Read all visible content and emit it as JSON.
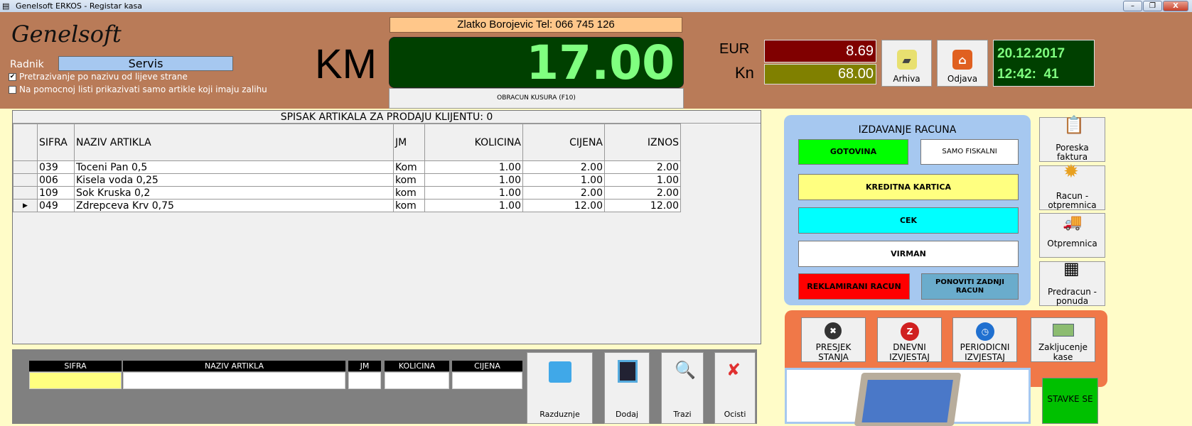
{
  "window": {
    "title": "Genelsoft ERKOS - Registar kasa",
    "minimize": "–",
    "restore": "❐",
    "close": "X"
  },
  "header": {
    "logo": "Genelsoft",
    "radnik_label": "Radnik",
    "radnik_value": "Servis",
    "options": [
      {
        "label": "Pretrazivanje po nazivu od lijeve strane",
        "checked": true
      },
      {
        "label": "Na pomocnoj listi prikazivati samo artikle koji imaju zalihu",
        "checked": false
      }
    ],
    "currency": "KM",
    "customer": "Zlatko Borojevic Tel: 066 745 126",
    "total": "17.00",
    "change_button": "OBRACUN KUSURA (F10)",
    "eur_label": "EUR",
    "eur_value": "8.69",
    "kn_label": "Kn",
    "kn_value": "68.00",
    "archive_button": "Arhiva",
    "logout_button": "Odjava",
    "date": "20.12.2017",
    "time": "12:42:  41"
  },
  "colors": {
    "header": "#b97b58",
    "display_bg": "#004000",
    "display_text": "#80ff80",
    "eur_bg": "#800000",
    "kn_bg": "#808000"
  },
  "items_table": {
    "title": "SPISAK ARTIKALA ZA PRODAJU KLIJENTU: 0",
    "columns": [
      "SIFRA",
      "NAZIV ARTIKLA",
      "JM",
      "KOLICINA",
      "CIJENA",
      "IZNOS"
    ],
    "rows": [
      [
        "039",
        "Toceni Pan 0,5",
        "Kom",
        "1.00",
        "2.00",
        "2.00"
      ],
      [
        "006",
        "Kisela voda 0,25",
        "kom",
        "1.00",
        "1.00",
        "1.00"
      ],
      [
        "109",
        "Sok Kruska 0,2",
        "kom",
        "1.00",
        "2.00",
        "2.00"
      ],
      [
        "049",
        "Zdrepceva Krv 0,75",
        "kom",
        "1.00",
        "12.00",
        "12.00"
      ]
    ],
    "current_row_marker": "▶"
  },
  "invoice_panel": {
    "title": "IZDAVANJE RACUNA",
    "gotovina": "GOTOVINA",
    "samo_fiskalni": "SAMO FISKALNI",
    "kreditna": "KREDITNA KARTICA",
    "cek": "CEK",
    "virman": "VIRMAN",
    "reklamirani": "REKLAMIRANI RACUN",
    "ponoviti": "PONOVITI ZADNJI RACUN"
  },
  "side_buttons": [
    "Poreska faktura",
    "Racun - otpremnica",
    "Otpremnica",
    "Predracun - ponuda"
  ],
  "report_buttons": [
    "PRESJEK STANJA",
    "DNEVNI IZVJESTAJ",
    "PERIODICNI IZVJESTAJ",
    "Zakljucenje kase"
  ],
  "entry": {
    "columns": [
      "SIFRA",
      "NAZIV ARTIKLA",
      "JM",
      "KOLICINA",
      "CIJENA"
    ],
    "buttons": [
      "Razduznje",
      "Dodaj",
      "Trazi",
      "Ocisti"
    ]
  },
  "stavke_button": "STAVKE SE"
}
